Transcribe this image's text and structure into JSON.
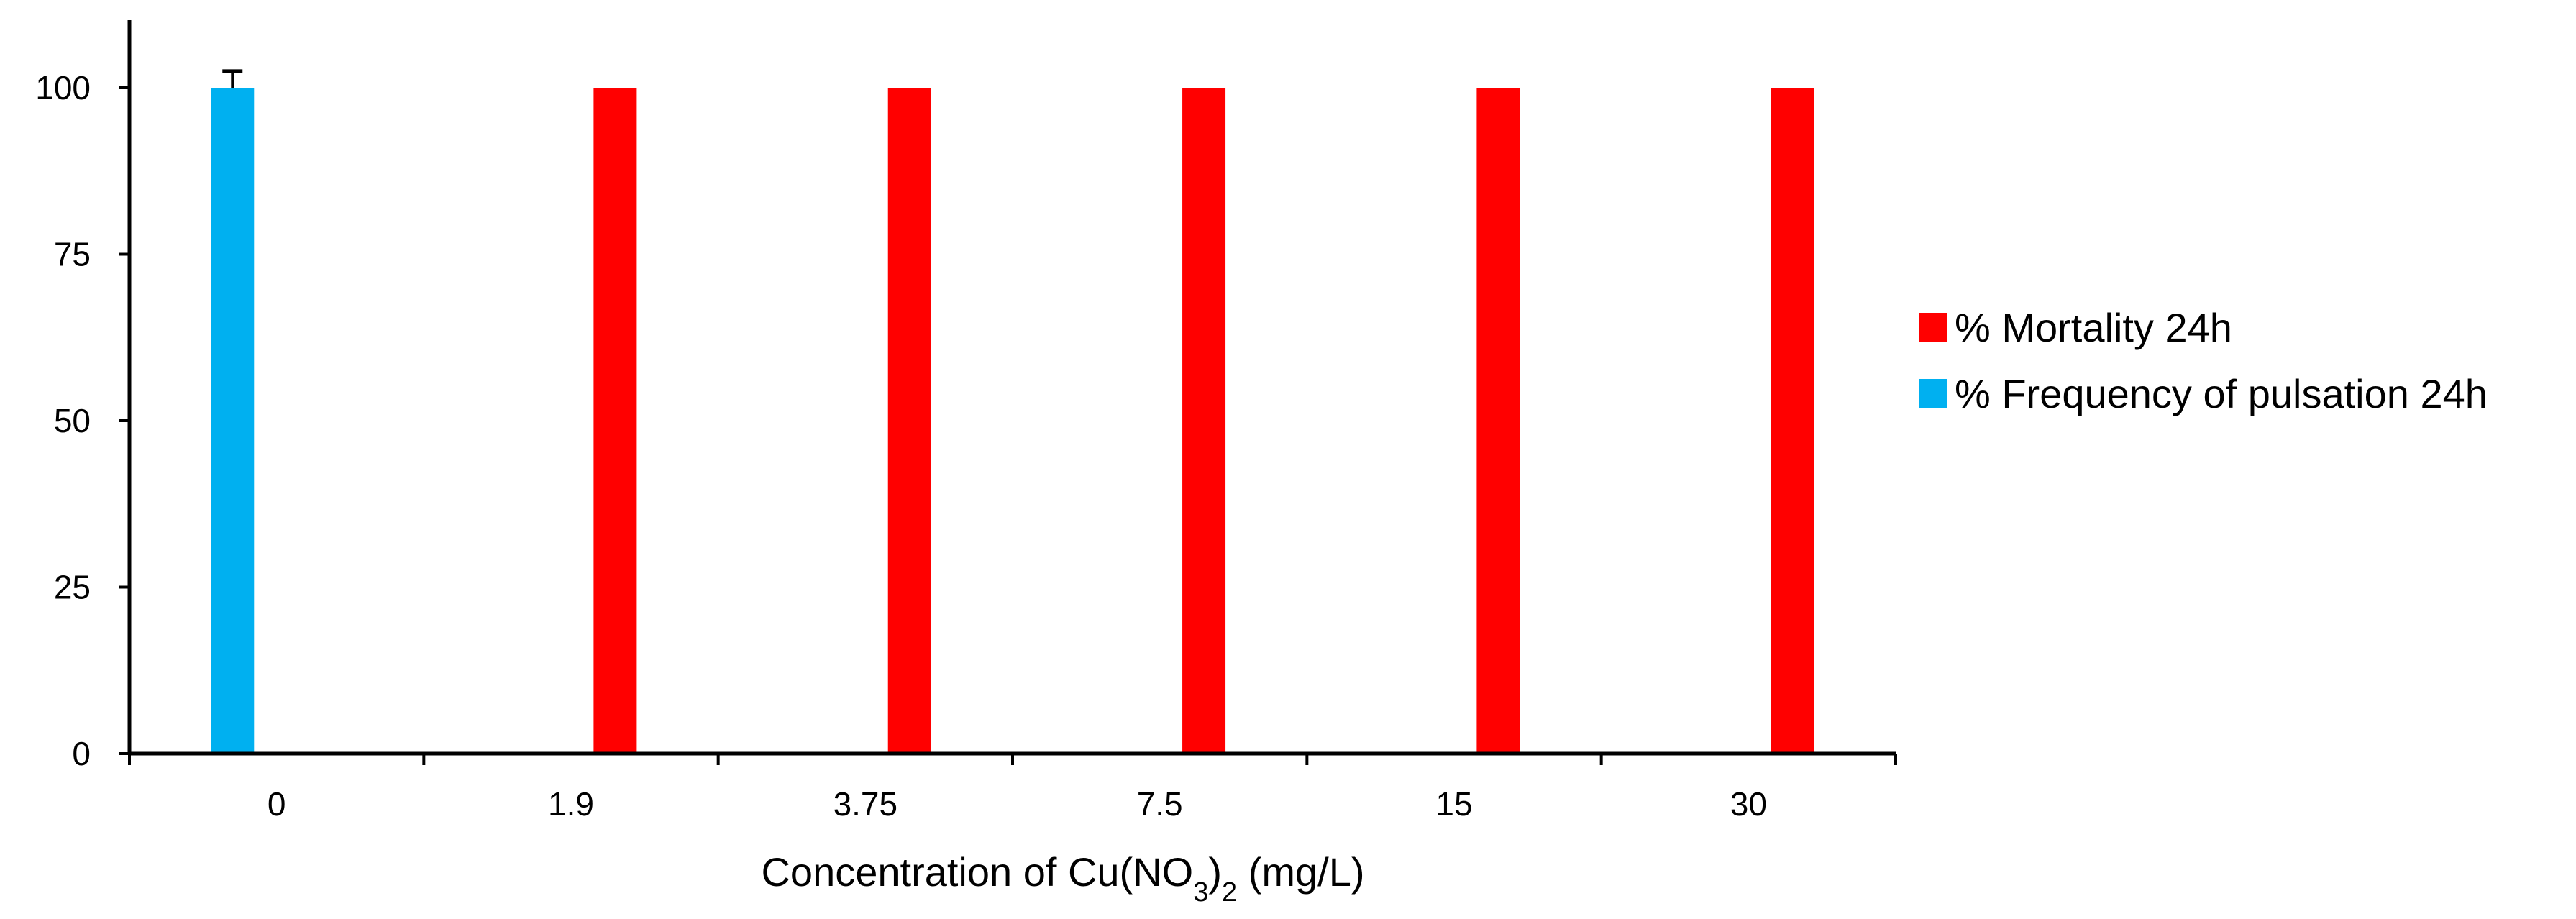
{
  "chart_data": {
    "type": "bar",
    "categories": [
      "0",
      "1.9",
      "3.75",
      "7.5",
      "15",
      "30"
    ],
    "series": [
      {
        "name": "% Frequency of pulsation 24h",
        "color": "#00b0f0",
        "values": [
          100,
          null,
          null,
          null,
          null,
          null
        ],
        "error": [
          2.5,
          null,
          null,
          null,
          null,
          null
        ]
      },
      {
        "name": "% Mortality 24h",
        "color": "#ff0000",
        "values": [
          null,
          100,
          100,
          100,
          100,
          100
        ],
        "error": [
          null,
          null,
          null,
          null,
          null,
          null
        ]
      }
    ],
    "y_ticks": [
      "0",
      "25",
      "50",
      "75",
      "100"
    ],
    "ylim": [
      0,
      100
    ],
    "xlabel": {
      "prefix": "Concentration of Cu(NO",
      "sub1": "3",
      "middle": ")",
      "sub2": "2",
      "suffix": " (mg/L)"
    },
    "ylabel": "",
    "title": "",
    "grid": false,
    "legend_position": "right",
    "legend_order": [
      "% Mortality 24h",
      "% Frequency of pulsation 24h"
    ]
  }
}
